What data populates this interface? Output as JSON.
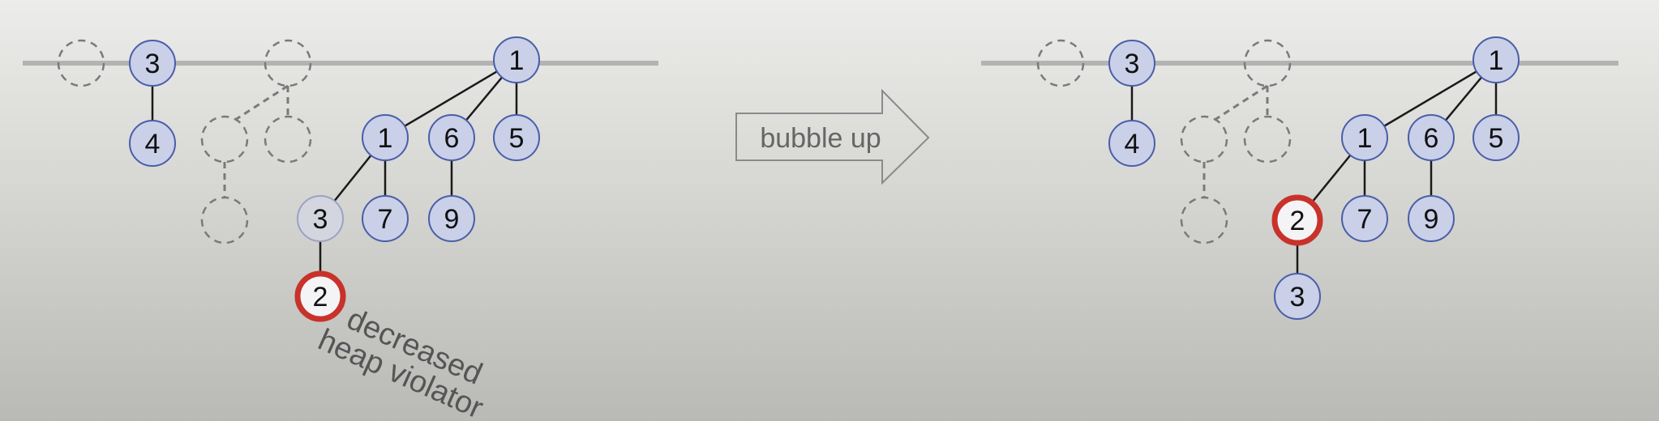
{
  "arrow": {
    "label": "bubble up"
  },
  "annotation": {
    "line1": "decreased",
    "line2": "heap violator"
  },
  "colors": {
    "node_fill": "#c9d0e8",
    "node_stroke": "#4a5ea8",
    "dim_fill": "#d3d6df",
    "violator_stroke": "#c8322a",
    "root_line": "#b3b3b3",
    "edge": "#1a1a1a",
    "placeholder": "#7a7a7a"
  },
  "left_tree": {
    "nodes": [
      {
        "id": "a3",
        "label": "3",
        "style": "normal"
      },
      {
        "id": "a4",
        "label": "4",
        "style": "normal"
      },
      {
        "id": "b1",
        "label": "1",
        "style": "normal"
      },
      {
        "id": "c1",
        "label": "1",
        "style": "normal"
      },
      {
        "id": "c6",
        "label": "6",
        "style": "normal"
      },
      {
        "id": "c5",
        "label": "5",
        "style": "normal"
      },
      {
        "id": "d3",
        "label": "3",
        "style": "dim"
      },
      {
        "id": "d7",
        "label": "7",
        "style": "normal"
      },
      {
        "id": "d9",
        "label": "9",
        "style": "normal"
      },
      {
        "id": "e2",
        "label": "2",
        "style": "violator"
      }
    ]
  },
  "right_tree": {
    "nodes": [
      {
        "id": "a3",
        "label": "3",
        "style": "normal"
      },
      {
        "id": "a4",
        "label": "4",
        "style": "normal"
      },
      {
        "id": "b1",
        "label": "1",
        "style": "normal"
      },
      {
        "id": "c1",
        "label": "1",
        "style": "normal"
      },
      {
        "id": "c6",
        "label": "6",
        "style": "normal"
      },
      {
        "id": "c5",
        "label": "5",
        "style": "normal"
      },
      {
        "id": "d2",
        "label": "2",
        "style": "violator"
      },
      {
        "id": "d7",
        "label": "7",
        "style": "normal"
      },
      {
        "id": "d9",
        "label": "9",
        "style": "normal"
      },
      {
        "id": "e3",
        "label": "3",
        "style": "normal"
      }
    ]
  }
}
